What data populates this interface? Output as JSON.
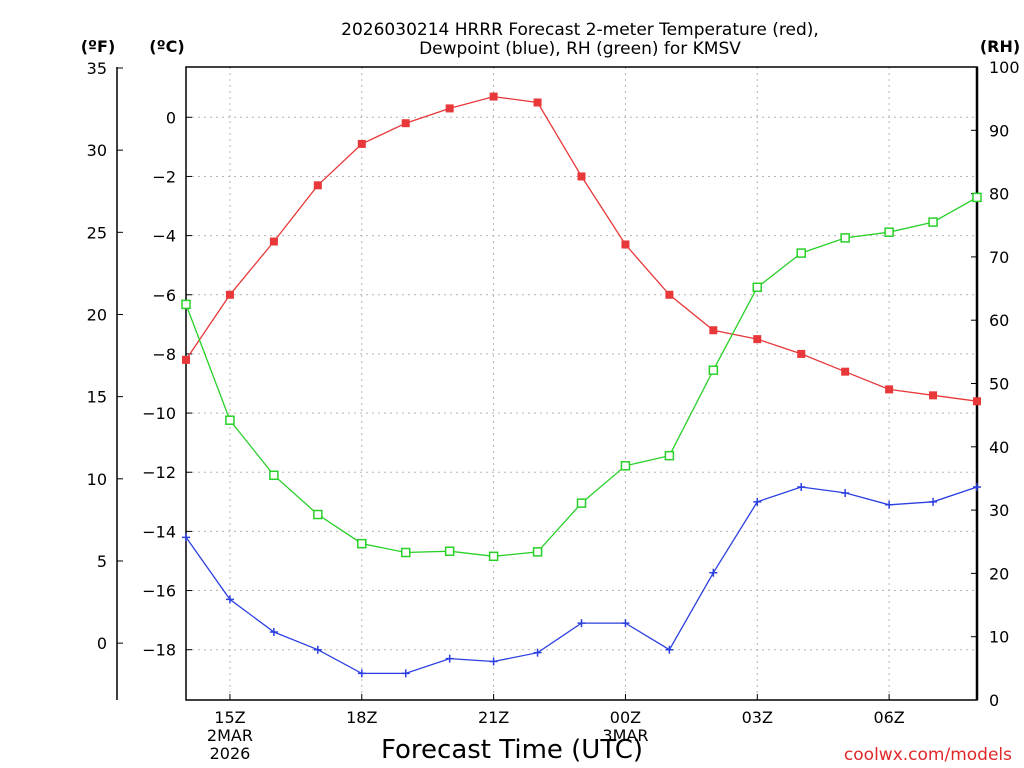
{
  "chart_data": {
    "type": "line",
    "title": "2026030214 HRRR Forecast 2-meter Temperature (red),",
    "subtitle": "Dewpoint (blue), RH (green) for KMSV",
    "xlabel": "Forecast Time (UTC)",
    "credit": "coolwx.com/models",
    "units": {
      "left_outer": "(ºF)",
      "left_inner": "(ºC)",
      "right": "(RH)"
    },
    "x_hours": [
      14,
      15,
      16,
      17,
      18,
      19,
      20,
      21,
      22,
      23,
      24,
      25,
      26,
      27,
      28,
      29,
      30,
      31,
      32
    ],
    "x_ticks": [
      {
        "hour": 15,
        "label": "15Z",
        "sub1": "2MAR",
        "sub2": "2026"
      },
      {
        "hour": 18,
        "label": "18Z",
        "sub1": "",
        "sub2": ""
      },
      {
        "hour": 21,
        "label": "21Z",
        "sub1": "",
        "sub2": ""
      },
      {
        "hour": 24,
        "label": "00Z",
        "sub1": "3MAR",
        "sub2": ""
      },
      {
        "hour": 27,
        "label": "03Z",
        "sub1": "",
        "sub2": ""
      },
      {
        "hour": 30,
        "label": "06Z",
        "sub1": "",
        "sub2": ""
      }
    ],
    "xlim": [
      14,
      32
    ],
    "celsius_axis": {
      "range": [
        -19.7,
        1.7
      ],
      "ticks": [
        0,
        -2,
        -4,
        -6,
        -8,
        -10,
        -12,
        -14,
        -16,
        -18
      ],
      "labels": [
        "0",
        "−2",
        "−4",
        "−6",
        "−8",
        "−10",
        "−12",
        "−14",
        "−16",
        "−18"
      ]
    },
    "fahrenheit_axis": {
      "ticks": [
        35,
        30,
        25,
        20,
        15,
        10,
        5,
        0
      ],
      "labels": [
        "35",
        "30",
        "25",
        "20",
        "15",
        "10",
        "5",
        "0"
      ]
    },
    "rh_axis": {
      "range": [
        0,
        100
      ],
      "ticks": [
        0,
        10,
        20,
        30,
        40,
        50,
        60,
        70,
        80,
        90,
        100
      ],
      "labels": [
        "0",
        "10",
        "20",
        "30",
        "40",
        "50",
        "60",
        "70",
        "80",
        "90",
        "100"
      ]
    },
    "series": [
      {
        "name": "Temperature",
        "unit": "C",
        "axis": "celsius",
        "color": "#e8383a",
        "marker": "filled-square",
        "values": [
          -8.2,
          -6.0,
          -4.2,
          -2.3,
          -0.9,
          -0.2,
          0.3,
          0.7,
          0.5,
          -2.0,
          -4.3,
          -6.0,
          -7.2,
          -7.5,
          -8.0,
          -8.6,
          -9.2,
          -9.4,
          -9.6
        ]
      },
      {
        "name": "Dewpoint",
        "unit": "C",
        "axis": "celsius",
        "color": "#2b3fe0",
        "marker": "plus",
        "values": [
          -14.2,
          -16.3,
          -17.4,
          -18.0,
          -18.8,
          -18.8,
          -18.3,
          -18.4,
          -18.1,
          -17.1,
          -17.1,
          -18.0,
          -15.4,
          -13.0,
          -12.5,
          -12.7,
          -13.1,
          -13.0,
          -12.5
        ]
      },
      {
        "name": "RH",
        "unit": "%",
        "axis": "rh",
        "color": "#28d028",
        "marker": "open-square",
        "values": [
          62.5,
          44.2,
          35.5,
          29.3,
          24.7,
          23.3,
          23.5,
          22.7,
          23.4,
          31.1,
          37.0,
          38.6,
          52.1,
          65.2,
          70.6,
          73.0,
          73.9,
          75.5,
          79.4
        ]
      }
    ]
  }
}
